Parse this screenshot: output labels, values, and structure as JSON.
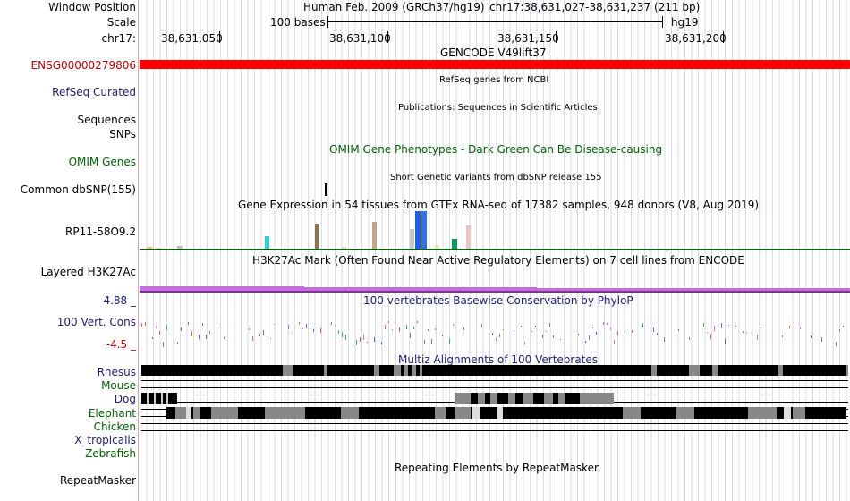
{
  "labels": {
    "window_position": "Window Position",
    "scale": "Scale",
    "chr": "chr17:",
    "gencode_track": "ENSG00000279806",
    "refseq": "RefSeq Curated",
    "sequences": "Sequences",
    "snps": "SNPs",
    "omim_genes": "OMIM Genes",
    "common_dbsnp": "Common dbSNP(155)",
    "gtex_gene": "RP11-58O9.2",
    "layered_h3k27ac": "Layered H3K27Ac",
    "cons_max": "4.88 _",
    "cons_name": "100 Vert. Cons",
    "cons_min": "-4.5 _",
    "species": [
      "Rhesus",
      "Mouse",
      "Dog",
      "Elephant",
      "Chicken",
      "X_tropicalis",
      "Zebrafish"
    ],
    "repeatmasker": "RepeatMasker"
  },
  "header": {
    "assembly": "Human Feb. 2009 (GRCh37/hg19)",
    "position": "chr17:38,631,027-38,631,237 (211 bp)",
    "scale_text": "100 bases",
    "db": "hg19",
    "ticks": [
      "38,631,050",
      "38,631,100",
      "38,631,150",
      "38,631,200"
    ]
  },
  "titles": {
    "gencode": "GENCODE V49lift37",
    "refseq": "RefSeq genes from NCBI",
    "publications": "Publications: Sequences in Scientific Articles",
    "omim": "OMIM Gene Phenotypes - Dark Green Can Be Disease-causing",
    "dbsnp": "Short Genetic Variants from dbSNP release 155",
    "gtex": "Gene Expression in 54 tissues from GTEx RNA-seq of 17382 samples, 948 donors (V8, Aug 2019)",
    "h3k27ac": "H3K27Ac Mark (Often Found Near Active Regulatory Elements) on 7 cell lines from ENCODE",
    "phylop": "100 vertebrates Basewise Conservation by PhyloP",
    "multiz": "Multiz Alignments of 100 Vertebrates",
    "repeatmasker": "Repeating Elements by RepeatMasker"
  },
  "colors": {
    "gene_red": "#ff0000",
    "label_red": "#cc0000",
    "navy": "#1f1f7a",
    "omim_green": "#006400",
    "species_green": "#006400",
    "h3k27ac": "#c070d8",
    "gtex_axis": "#006400"
  },
  "gtex_bars": [
    {
      "color": "#f0c080",
      "value": 2
    },
    {
      "color": "#e8d8a0",
      "value": 1
    },
    {
      "color": "#c0c0c0",
      "value": 3
    },
    {
      "color": "#30d0d0",
      "value": 14
    },
    {
      "color": "#8b7355",
      "value": 28
    },
    {
      "color": "#e8e0b0",
      "value": 2
    },
    {
      "color": "#c4a484",
      "value": 30
    },
    {
      "color": "#c8c8c8",
      "value": 22
    },
    {
      "color": "#1e60e0",
      "value": 42
    },
    {
      "color": "#3070f0",
      "value": 42
    },
    {
      "color": "#e8e8c8",
      "value": 4
    },
    {
      "color": "#00a060",
      "value": 11
    },
    {
      "color": "#e8c8c0",
      "value": 26
    }
  ]
}
